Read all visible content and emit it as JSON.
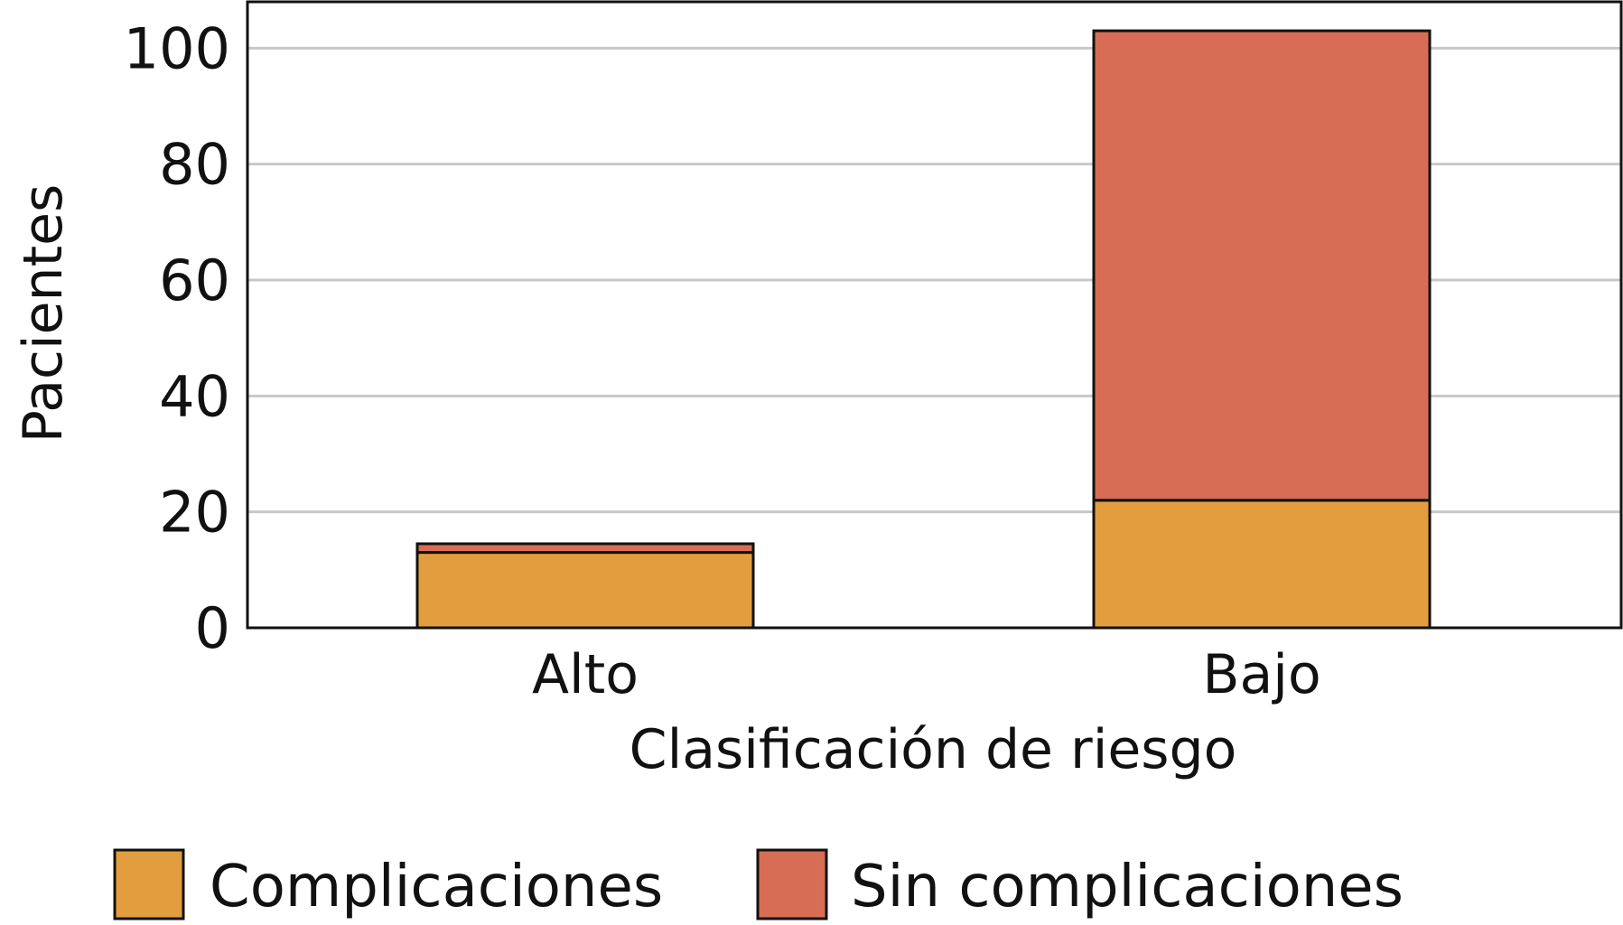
{
  "chart_data": {
    "type": "bar",
    "stacked": true,
    "categories": [
      "Alto",
      "Bajo"
    ],
    "series": [
      {
        "name": "Complicaciones",
        "values": [
          13,
          22
        ],
        "color": "#E29E3E"
      },
      {
        "name": "Sin complicaciones",
        "values": [
          1.5,
          81
        ],
        "color": "#D76D54"
      }
    ],
    "xlabel": "Clasificación de riesgo",
    "ylabel": "Pacientes",
    "ylim": [
      0,
      108
    ],
    "yticks": [
      0,
      20,
      40,
      60,
      80,
      100
    ],
    "grid": true,
    "legend_position": "bottom"
  }
}
